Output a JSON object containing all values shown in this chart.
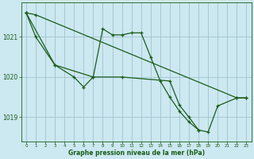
{
  "line1_x": [
    0,
    1,
    22,
    23
  ],
  "line1_y": [
    1021.6,
    1021.55,
    1019.48,
    1019.48
  ],
  "line2_x": [
    0,
    1,
    3,
    5,
    6,
    7,
    8,
    9,
    10,
    11,
    12,
    13,
    14,
    15,
    16,
    17,
    18
  ],
  "line2_y": [
    1021.6,
    1021.0,
    1020.3,
    1020.0,
    1019.75,
    1020.0,
    1021.2,
    1021.05,
    1021.05,
    1021.1,
    1021.1,
    1020.5,
    1019.9,
    1019.5,
    1019.15,
    1018.88,
    1018.68
  ],
  "line3_x": [
    0,
    3,
    7,
    10,
    15,
    16,
    17,
    18,
    19,
    20,
    22,
    23
  ],
  "line3_y": [
    1021.6,
    1020.3,
    1020.0,
    1020.0,
    1019.9,
    1019.3,
    1019.0,
    1018.68,
    1018.63,
    1019.28,
    1019.48,
    1019.48
  ],
  "bg_color": "#cce8f0",
  "line_color": "#1a5c1a",
  "grid_color": "#99bbcc",
  "xlabel": "Graphe pression niveau de la mer (hPa)",
  "ylim": [
    1018.4,
    1021.85
  ],
  "yticks": [
    1019,
    1020,
    1021
  ],
  "xticks": [
    0,
    1,
    2,
    3,
    4,
    5,
    6,
    7,
    8,
    9,
    10,
    11,
    12,
    13,
    14,
    15,
    16,
    17,
    18,
    19,
    20,
    21,
    22,
    23
  ]
}
